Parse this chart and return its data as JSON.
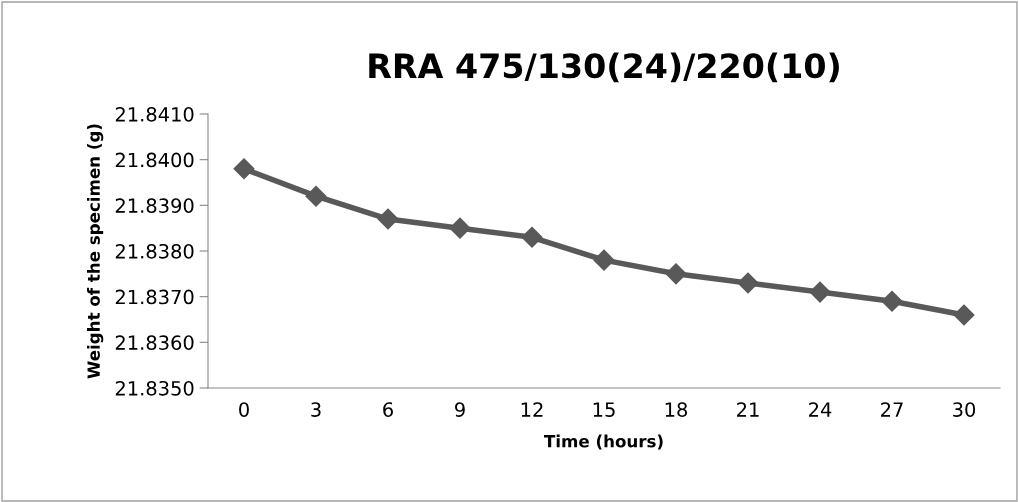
{
  "chart_data": {
    "type": "line",
    "title": "RRA 475/130(24)/220(10)",
    "xlabel": "Time (hours)",
    "ylabel": "Weight of the specimen (g)",
    "categories": [
      "0",
      "3",
      "6",
      "9",
      "12",
      "15",
      "18",
      "21",
      "24",
      "27",
      "30"
    ],
    "series": [
      {
        "color": "#595959",
        "values": [
          21.8398,
          21.8392,
          21.8387,
          21.8385,
          21.8383,
          21.8378,
          21.8375,
          21.8373,
          21.8371,
          21.8369,
          21.8366
        ]
      }
    ],
    "ylim": [
      21.835,
      21.841
    ],
    "yticks": [
      {
        "value": 21.835,
        "label": "21.8350"
      },
      {
        "value": 21.836,
        "label": "21.8360"
      },
      {
        "value": 21.837,
        "label": "21.8370"
      },
      {
        "value": 21.838,
        "label": "21.8380"
      },
      {
        "value": 21.839,
        "label": "21.8390"
      },
      {
        "value": 21.84,
        "label": "21.8400"
      },
      {
        "value": 21.841,
        "label": "21.8410"
      }
    ],
    "marker": "diamond",
    "line_style": "solid"
  }
}
